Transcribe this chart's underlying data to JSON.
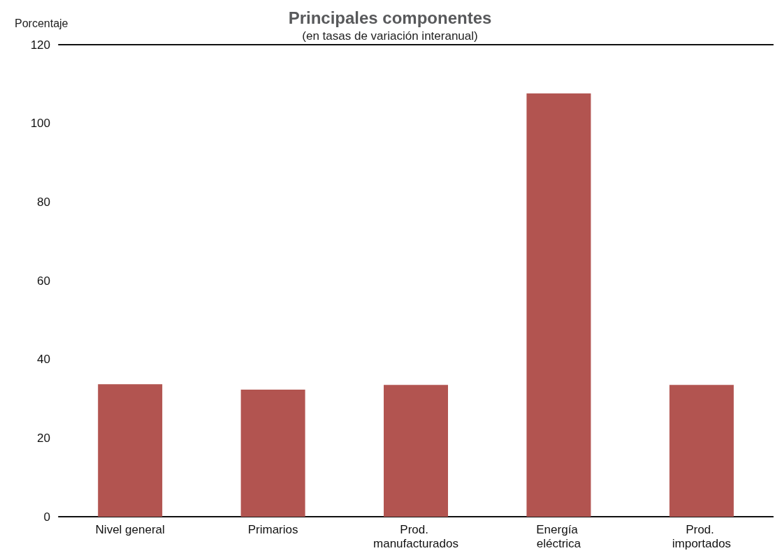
{
  "chart_data": {
    "type": "bar",
    "title": "Principales componentes",
    "subtitle": "(en tasas de variación interanual)",
    "ylabel": "Porcentaje",
    "categories": [
      "Nivel general",
      "Primarios",
      "Prod. manufacturados",
      "Energía eléctrica",
      "Prod. importados"
    ],
    "values": [
      33.7,
      32.3,
      33.5,
      107.6,
      33.5
    ],
    "color": "#b25450",
    "ylim": [
      0,
      120
    ],
    "yticks": [
      0,
      20,
      40,
      60,
      80,
      100,
      120
    ],
    "grid": false
  }
}
